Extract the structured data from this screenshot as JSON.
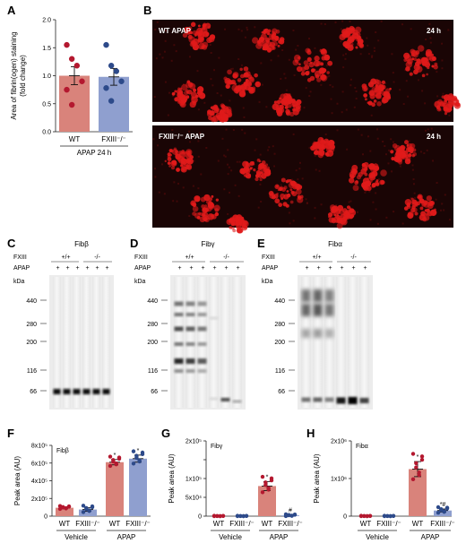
{
  "colors": {
    "wt_bar": "#d9837b",
    "fxiii_bar": "#8f9fcf",
    "wt_dot": "#b4182f",
    "fxiii_dot": "#2d4a8a",
    "wt_dot_vehicle": "#b4182f",
    "fxiii_dot_vehicle": "#2d4a8a",
    "stain": "#e01a1a"
  },
  "panels": {
    "A": {
      "label": "A"
    },
    "B": {
      "label": "B",
      "top_title": "WT APAP",
      "top_time": "24 h",
      "bottom_title": "FXIII⁻/⁻ APAP",
      "bottom_time": "24 h"
    },
    "C": {
      "label": "C",
      "title": "Fibβ"
    },
    "D": {
      "label": "D",
      "title": "Fibγ"
    },
    "E": {
      "label": "E",
      "title": "Fibα"
    },
    "F": {
      "label": "F"
    },
    "G": {
      "label": "G"
    },
    "H": {
      "label": "H"
    }
  },
  "blots": {
    "row_fxiii": "FXIII",
    "row_apap": "APAP",
    "genotype_pos": "+/+",
    "genotype_neg": "-/-",
    "apap_marks": [
      "+",
      "+",
      "+",
      "+",
      "+",
      "+"
    ],
    "kda_label": "kDa",
    "kda_ticks": [
      "440",
      "280",
      "200",
      "116",
      "66"
    ]
  },
  "chart_data": [
    {
      "id": "A",
      "type": "bar",
      "ylabel": "Area of fibrin(ogen) staining\n(fold change)",
      "ylim": [
        0,
        2.0
      ],
      "yticks": [
        "0.0",
        "0.5",
        "1.0",
        "1.5",
        "2.0"
      ],
      "categories": [
        "WT",
        "FXIII⁻/⁻"
      ],
      "group_label": "APAP 24 h",
      "values": [
        1.0,
        0.98
      ],
      "sem": [
        0.16,
        0.15
      ],
      "points": [
        [
          1.55,
          1.3,
          1.18,
          0.9,
          0.75,
          0.48
        ],
        [
          1.55,
          1.18,
          1.08,
          0.9,
          0.78,
          0.55
        ]
      ]
    },
    {
      "id": "F",
      "type": "bar",
      "title": "Fibβ",
      "ylabel": "Peak area (AU)",
      "ylim": [
        0,
        800000
      ],
      "yticks": [
        "0",
        "2x10⁵",
        "4x10⁵",
        "6x10⁵",
        "8x10⁵"
      ],
      "categories": [
        "WT",
        "FXIII⁻/⁻",
        "WT",
        "FXIII⁻/⁻"
      ],
      "groups": [
        "Vehicle",
        "APAP"
      ],
      "values": [
        95000,
        75000,
        610000,
        650000
      ],
      "sem": [
        8000,
        20000,
        30000,
        40000
      ],
      "annotations": [
        "",
        "",
        "*",
        "*"
      ]
    },
    {
      "id": "G",
      "type": "bar",
      "title": "Fibγ",
      "ylabel": "Peak area (AU)",
      "ylim": [
        0,
        200000
      ],
      "yticks": [
        "0",
        "5x10⁴",
        "1x10⁵",
        "",
        "2x10⁵"
      ],
      "categories": [
        "WT",
        "FXIII⁻/⁻",
        "WT",
        "FXIII⁻/⁻"
      ],
      "groups": [
        "Vehicle",
        "APAP"
      ],
      "values": [
        0,
        0,
        80000,
        2000
      ],
      "sem": [
        0,
        0,
        12000,
        1000
      ],
      "annotations": [
        "",
        "",
        "*",
        "#"
      ]
    },
    {
      "id": "H",
      "type": "bar",
      "title": "Fibα",
      "ylabel": "Peak area (AU)",
      "ylim": [
        0,
        2000000
      ],
      "yticks": [
        "0",
        "1x10⁶",
        "2x10⁶"
      ],
      "categories": [
        "WT",
        "FXIII⁻/⁻",
        "WT",
        "FXIII⁻/⁻"
      ],
      "groups": [
        "Vehicle",
        "APAP"
      ],
      "values": [
        0,
        0,
        1250000,
        150000
      ],
      "sem": [
        0,
        0,
        200000,
        40000
      ],
      "annotations": [
        "",
        "",
        "*",
        "*#"
      ]
    }
  ]
}
